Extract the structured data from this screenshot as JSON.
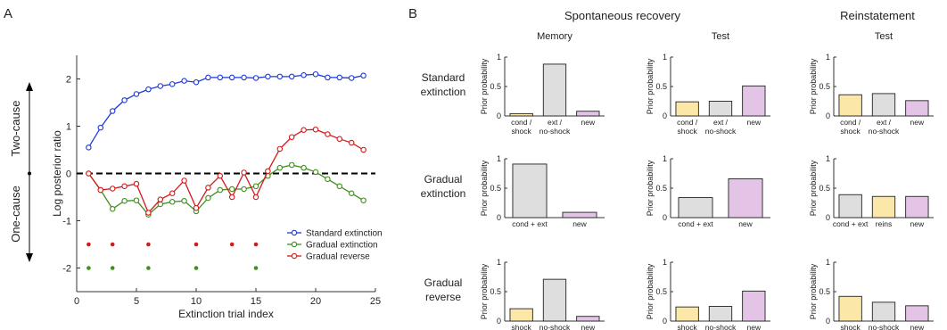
{
  "panel_a_letter": "A",
  "panel_b_letter": "B",
  "chart_data": [
    {
      "type": "line",
      "xlabel": "Extinction trial index",
      "ylabel": "Log posterior ratio",
      "side_label_top": "Two-cause",
      "side_label_bottom": "One-cause",
      "xlim": [
        0,
        25
      ],
      "ylim": [
        -2.5,
        2.5
      ],
      "xticks": [
        "0",
        "5",
        "10",
        "15",
        "20",
        "25"
      ],
      "yticks": [
        "-2",
        "-1",
        "0",
        "1",
        "2"
      ],
      "legend_position": "bottom-right",
      "reference_line": 0,
      "series": [
        {
          "name": "Standard extinction",
          "color": "#1f3bd9",
          "x": [
            1,
            2,
            3,
            4,
            5,
            6,
            7,
            8,
            9,
            10,
            11,
            12,
            13,
            14,
            15,
            16,
            17,
            18,
            19,
            20,
            21,
            22,
            23,
            24
          ],
          "y": [
            0.55,
            0.97,
            1.32,
            1.55,
            1.68,
            1.78,
            1.85,
            1.89,
            1.96,
            1.93,
            2.03,
            2.03,
            2.03,
            2.03,
            2.02,
            2.05,
            2.05,
            2.05,
            2.08,
            2.1,
            2.03,
            2.03,
            2.02,
            2.07
          ]
        },
        {
          "name": "Gradual extinction",
          "color": "#3e8f1c",
          "x": [
            1,
            2,
            3,
            4,
            5,
            6,
            7,
            8,
            9,
            10,
            11,
            12,
            13,
            14,
            15,
            16,
            17,
            18,
            19,
            20,
            21,
            22,
            23,
            24
          ],
          "y": [
            0,
            -0.35,
            -0.75,
            -0.58,
            -0.57,
            -0.87,
            -0.65,
            -0.6,
            -0.58,
            -0.8,
            -0.52,
            -0.35,
            -0.33,
            -0.33,
            -0.27,
            -0.05,
            0.12,
            0.18,
            0.12,
            0.03,
            -0.12,
            -0.27,
            -0.42,
            -0.57
          ]
        },
        {
          "name": "Gradual reverse",
          "color": "#d41a1a",
          "x": [
            1,
            2,
            3,
            4,
            5,
            6,
            7,
            8,
            9,
            10,
            11,
            12,
            13,
            14,
            15,
            16,
            17,
            18,
            19,
            20,
            21,
            22,
            23,
            24
          ],
          "y": [
            0,
            -0.35,
            -0.32,
            -0.27,
            -0.22,
            -0.83,
            -0.55,
            -0.42,
            -0.15,
            -0.73,
            -0.3,
            -0.05,
            -0.5,
            0.02,
            -0.5,
            0.05,
            0.52,
            0.77,
            0.92,
            0.93,
            0.83,
            0.73,
            0.65,
            0.5
          ]
        }
      ],
      "event_markers": [
        {
          "series": "Gradual reverse",
          "y": -1.5,
          "x": [
            1,
            3,
            6,
            10,
            13,
            15
          ]
        },
        {
          "series": "Gradual extinction",
          "y": -2,
          "x": [
            1,
            3,
            6,
            10,
            15
          ]
        }
      ]
    },
    {
      "type": "bar",
      "group_title": "Spontaneous recovery",
      "column_title": "Memory",
      "row_label": [
        "Standard",
        "extinction"
      ],
      "ylabel": "Prior probability",
      "ylim": [
        0,
        1
      ],
      "yticks": [
        "0",
        "0.5",
        "1"
      ],
      "bars": [
        {
          "label": [
            "cond /",
            "shock"
          ],
          "value": 0.04,
          "color": "#fbe7a8"
        },
        {
          "label": [
            "ext /",
            "no-shock"
          ],
          "value": 0.88,
          "color": "#dedede"
        },
        {
          "label": [
            "new"
          ],
          "value": 0.08,
          "color": "#e3c4e6"
        }
      ]
    },
    {
      "type": "bar",
      "group_title": "",
      "column_title": "Test",
      "row_label": [],
      "ylabel": "Prior probability",
      "ylim": [
        0,
        1
      ],
      "yticks": [
        "0",
        "0.5",
        "1"
      ],
      "bars": [
        {
          "label": [
            "cond /",
            "shock"
          ],
          "value": 0.24,
          "color": "#fbe7a8"
        },
        {
          "label": [
            "ext /",
            "no-shock"
          ],
          "value": 0.25,
          "color": "#dedede"
        },
        {
          "label": [
            "new"
          ],
          "value": 0.51,
          "color": "#e3c4e6"
        }
      ]
    },
    {
      "type": "bar",
      "group_title": "Reinstatement",
      "column_title": "Test",
      "row_label": [],
      "ylabel": "Prior probability",
      "ylim": [
        0,
        1
      ],
      "yticks": [
        "0",
        "0.5",
        "1"
      ],
      "bars": [
        {
          "label": [
            "cond /",
            "shock"
          ],
          "value": 0.36,
          "color": "#fbe7a8"
        },
        {
          "label": [
            "ext /",
            "no-shock"
          ],
          "value": 0.38,
          "color": "#dedede"
        },
        {
          "label": [
            "new"
          ],
          "value": 0.26,
          "color": "#e3c4e6"
        }
      ]
    },
    {
      "type": "bar",
      "group_title": "",
      "column_title": "",
      "row_label": [
        "Gradual",
        "extinction"
      ],
      "ylabel": "Prior probability",
      "ylim": [
        0,
        1
      ],
      "yticks": [
        "0",
        "0.5",
        "1"
      ],
      "bars": [
        {
          "label": [
            "cond + ext"
          ],
          "value": 0.91,
          "color": "#dedede"
        },
        {
          "label": [
            "new"
          ],
          "value": 0.09,
          "color": "#e3c4e6"
        }
      ]
    },
    {
      "type": "bar",
      "group_title": "",
      "column_title": "",
      "row_label": [],
      "ylabel": "Prior probability",
      "ylim": [
        0,
        1
      ],
      "yticks": [
        "0",
        "0.5",
        "1"
      ],
      "bars": [
        {
          "label": [
            "cond + ext"
          ],
          "value": 0.34,
          "color": "#dedede"
        },
        {
          "label": [
            "new"
          ],
          "value": 0.66,
          "color": "#e3c4e6"
        }
      ]
    },
    {
      "type": "bar",
      "group_title": "",
      "column_title": "",
      "row_label": [],
      "ylabel": "Prior probability",
      "ylim": [
        0,
        1
      ],
      "yticks": [
        "0",
        "0.5",
        "1"
      ],
      "bars": [
        {
          "label": [
            "cond + ext"
          ],
          "value": 0.39,
          "color": "#dedede"
        },
        {
          "label": [
            "reins"
          ],
          "value": 0.36,
          "color": "#fbe7a8"
        },
        {
          "label": [
            "new"
          ],
          "value": 0.36,
          "color": "#e3c4e6"
        }
      ]
    },
    {
      "type": "bar",
      "group_title": "",
      "column_title": "",
      "row_label": [
        "Gradual",
        "reverse"
      ],
      "ylabel": "Prior probability",
      "xlabel": "Cause",
      "ylim": [
        0,
        1
      ],
      "yticks": [
        "0",
        "0.5",
        "1"
      ],
      "bars": [
        {
          "label": [
            "shock"
          ],
          "value": 0.21,
          "color": "#fbe7a8"
        },
        {
          "label": [
            "no-shock"
          ],
          "value": 0.71,
          "color": "#dedede"
        },
        {
          "label": [
            "new"
          ],
          "value": 0.08,
          "color": "#e3c4e6"
        }
      ]
    },
    {
      "type": "bar",
      "group_title": "",
      "column_title": "",
      "row_label": [],
      "ylabel": "Prior probability",
      "xlabel": "Cause",
      "ylim": [
        0,
        1
      ],
      "yticks": [
        "0",
        "0.5",
        "1"
      ],
      "bars": [
        {
          "label": [
            "shock"
          ],
          "value": 0.24,
          "color": "#fbe7a8"
        },
        {
          "label": [
            "no-shock"
          ],
          "value": 0.25,
          "color": "#dedede"
        },
        {
          "label": [
            "new"
          ],
          "value": 0.51,
          "color": "#e3c4e6"
        }
      ]
    },
    {
      "type": "bar",
      "group_title": "",
      "column_title": "",
      "row_label": [],
      "ylabel": "Prior probability",
      "xlabel": "Cause",
      "ylim": [
        0,
        1
      ],
      "yticks": [
        "0",
        "0.5",
        "1"
      ],
      "bars": [
        {
          "label": [
            "shock"
          ],
          "value": 0.42,
          "color": "#fbe7a8"
        },
        {
          "label": [
            "no-shock"
          ],
          "value": 0.32,
          "color": "#dedede"
        },
        {
          "label": [
            "new"
          ],
          "value": 0.26,
          "color": "#e3c4e6"
        }
      ]
    }
  ]
}
